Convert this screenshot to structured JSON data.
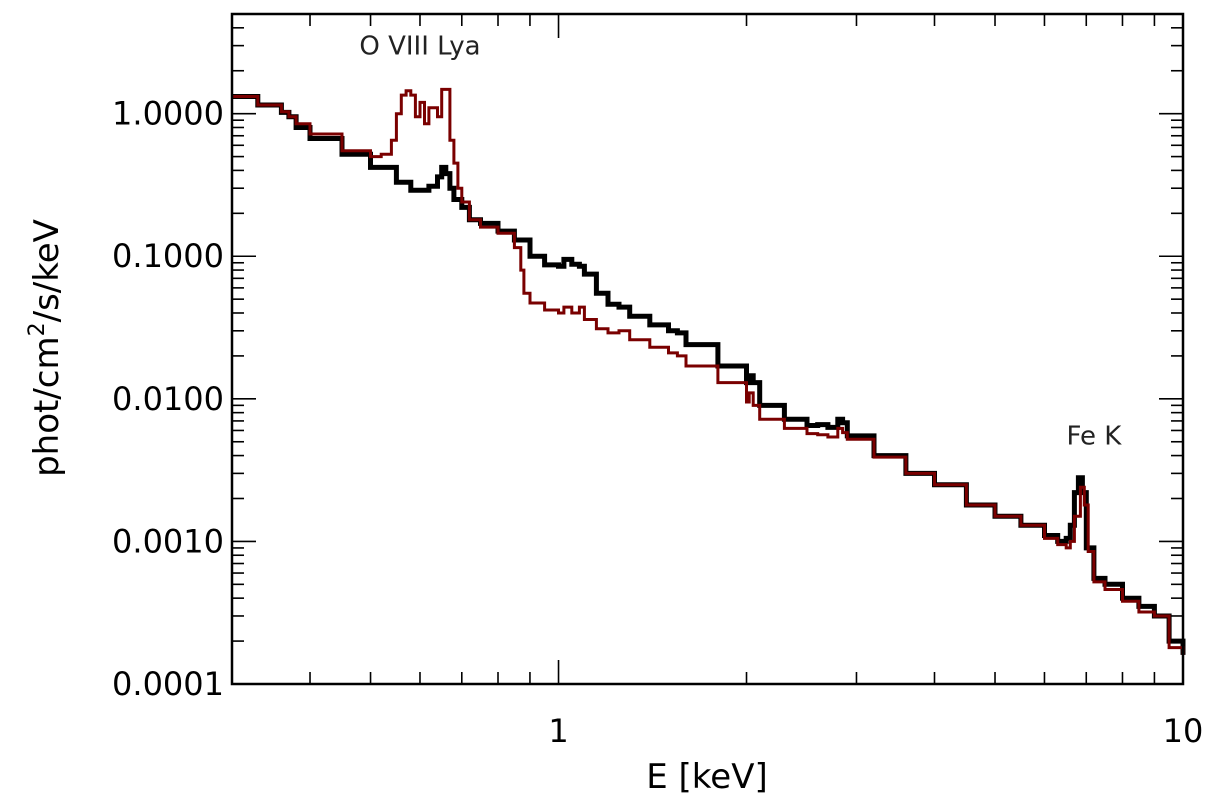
{
  "chart_data": {
    "type": "line",
    "title": "",
    "xlabel": "E [keV]",
    "ylabel_parts": {
      "pre": "phot/cm",
      "sup": "2",
      "post": "/s/keV"
    },
    "xscale": "log",
    "yscale": "log",
    "xlim": [
      0.3,
      10
    ],
    "ylim": [
      0.0001,
      5
    ],
    "grid": false,
    "legend": "none",
    "x_ticks": [
      {
        "value": 1,
        "label": "1"
      },
      {
        "value": 10,
        "label": "10"
      }
    ],
    "y_ticks": [
      {
        "value": 0.0001,
        "label": "0.0001"
      },
      {
        "value": 0.001,
        "label": "0.0010"
      },
      {
        "value": 0.01,
        "label": "0.0100"
      },
      {
        "value": 0.1,
        "label": "0.1000"
      },
      {
        "value": 1,
        "label": "1.0000"
      }
    ],
    "annotations": [
      {
        "text": "O VIII Lya",
        "x": 0.6,
        "y": 2.6
      },
      {
        "text": "Fe K",
        "x": 7.2,
        "y": 0.0048
      }
    ],
    "series": [
      {
        "color": "#000000",
        "line_width": 5,
        "points": [
          [
            0.3,
            1.32
          ],
          [
            0.33,
            1.15
          ],
          [
            0.36,
            1.02
          ],
          [
            0.37,
            0.95
          ],
          [
            0.38,
            0.8
          ],
          [
            0.4,
            0.67
          ],
          [
            0.45,
            0.52
          ],
          [
            0.5,
            0.42
          ],
          [
            0.55,
            0.33
          ],
          [
            0.58,
            0.29
          ],
          [
            0.6,
            0.29
          ],
          [
            0.62,
            0.31
          ],
          [
            0.64,
            0.36
          ],
          [
            0.65,
            0.42
          ],
          [
            0.66,
            0.38
          ],
          [
            0.67,
            0.3
          ],
          [
            0.68,
            0.25
          ],
          [
            0.7,
            0.22
          ],
          [
            0.72,
            0.18
          ],
          [
            0.75,
            0.17
          ],
          [
            0.8,
            0.15
          ],
          [
            0.85,
            0.13
          ],
          [
            0.9,
            0.1
          ],
          [
            0.95,
            0.087
          ],
          [
            1.0,
            0.085
          ],
          [
            1.02,
            0.095
          ],
          [
            1.05,
            0.088
          ],
          [
            1.08,
            0.085
          ],
          [
            1.1,
            0.075
          ],
          [
            1.15,
            0.055
          ],
          [
            1.2,
            0.046
          ],
          [
            1.25,
            0.044
          ],
          [
            1.3,
            0.038
          ],
          [
            1.4,
            0.033
          ],
          [
            1.5,
            0.03
          ],
          [
            1.55,
            0.029
          ],
          [
            1.6,
            0.024
          ],
          [
            1.8,
            0.017
          ],
          [
            2.0,
            0.013
          ],
          [
            2.02,
            0.0145
          ],
          [
            2.05,
            0.013
          ],
          [
            2.1,
            0.009
          ],
          [
            2.3,
            0.0072
          ],
          [
            2.5,
            0.0065
          ],
          [
            2.6,
            0.0066
          ],
          [
            2.7,
            0.0063
          ],
          [
            2.8,
            0.0072
          ],
          [
            2.85,
            0.0068
          ],
          [
            2.9,
            0.0055
          ],
          [
            3.2,
            0.004
          ],
          [
            3.6,
            0.003
          ],
          [
            4.0,
            0.0025
          ],
          [
            4.5,
            0.0018
          ],
          [
            5.0,
            0.0015
          ],
          [
            5.5,
            0.0013
          ],
          [
            6.0,
            0.0011
          ],
          [
            6.3,
            0.001
          ],
          [
            6.5,
            0.00105
          ],
          [
            6.6,
            0.0013
          ],
          [
            6.7,
            0.0022
          ],
          [
            6.8,
            0.0028
          ],
          [
            6.9,
            0.0022
          ],
          [
            7.0,
            0.0009
          ],
          [
            7.2,
            0.00055
          ],
          [
            7.5,
            0.0005
          ],
          [
            8.0,
            0.0004
          ],
          [
            8.5,
            0.00035
          ],
          [
            9.0,
            0.0003
          ],
          [
            9.5,
            0.0002
          ],
          [
            10.0,
            0.00016
          ]
        ]
      },
      {
        "color": "#7a0000",
        "line_width": 3,
        "points": [
          [
            0.3,
            1.32
          ],
          [
            0.33,
            1.15
          ],
          [
            0.36,
            1.03
          ],
          [
            0.37,
            0.95
          ],
          [
            0.38,
            0.85
          ],
          [
            0.4,
            0.72
          ],
          [
            0.45,
            0.55
          ],
          [
            0.5,
            0.5
          ],
          [
            0.52,
            0.52
          ],
          [
            0.54,
            0.65
          ],
          [
            0.55,
            1.0
          ],
          [
            0.56,
            1.35
          ],
          [
            0.57,
            1.45
          ],
          [
            0.58,
            1.35
          ],
          [
            0.59,
            0.95
          ],
          [
            0.6,
            1.2
          ],
          [
            0.61,
            0.85
          ],
          [
            0.62,
            1.1
          ],
          [
            0.64,
            0.95
          ],
          [
            0.65,
            1.48
          ],
          [
            0.66,
            1.48
          ],
          [
            0.67,
            0.65
          ],
          [
            0.68,
            0.45
          ],
          [
            0.69,
            0.3
          ],
          [
            0.7,
            0.24
          ],
          [
            0.72,
            0.18
          ],
          [
            0.75,
            0.16
          ],
          [
            0.8,
            0.145
          ],
          [
            0.85,
            0.115
          ],
          [
            0.87,
            0.08
          ],
          [
            0.88,
            0.055
          ],
          [
            0.9,
            0.047
          ],
          [
            0.95,
            0.042
          ],
          [
            1.0,
            0.04
          ],
          [
            1.02,
            0.044
          ],
          [
            1.05,
            0.04
          ],
          [
            1.08,
            0.044
          ],
          [
            1.1,
            0.036
          ],
          [
            1.15,
            0.031
          ],
          [
            1.2,
            0.029
          ],
          [
            1.25,
            0.03
          ],
          [
            1.3,
            0.026
          ],
          [
            1.4,
            0.023
          ],
          [
            1.5,
            0.021
          ],
          [
            1.55,
            0.02
          ],
          [
            1.6,
            0.017
          ],
          [
            1.8,
            0.013
          ],
          [
            2.0,
            0.0095
          ],
          [
            2.02,
            0.011
          ],
          [
            2.05,
            0.009
          ],
          [
            2.1,
            0.0072
          ],
          [
            2.3,
            0.0062
          ],
          [
            2.5,
            0.0057
          ],
          [
            2.6,
            0.0056
          ],
          [
            2.7,
            0.0054
          ],
          [
            2.8,
            0.0062
          ],
          [
            2.85,
            0.0058
          ],
          [
            2.9,
            0.0052
          ],
          [
            3.2,
            0.0039
          ],
          [
            3.6,
            0.003
          ],
          [
            4.0,
            0.0025
          ],
          [
            4.5,
            0.0018
          ],
          [
            5.0,
            0.0015
          ],
          [
            5.5,
            0.0013
          ],
          [
            6.0,
            0.00105
          ],
          [
            6.3,
            0.00095
          ],
          [
            6.5,
            0.0009
          ],
          [
            6.6,
            0.001
          ],
          [
            6.7,
            0.0015
          ],
          [
            6.85,
            0.0024
          ],
          [
            6.95,
            0.0018
          ],
          [
            7.05,
            0.00085
          ],
          [
            7.2,
            0.00052
          ],
          [
            7.5,
            0.00046
          ],
          [
            8.0,
            0.00038
          ],
          [
            8.5,
            0.00032
          ],
          [
            9.0,
            0.0003
          ],
          [
            9.5,
            0.00018
          ],
          [
            10.0,
            0.00016
          ]
        ]
      }
    ]
  }
}
